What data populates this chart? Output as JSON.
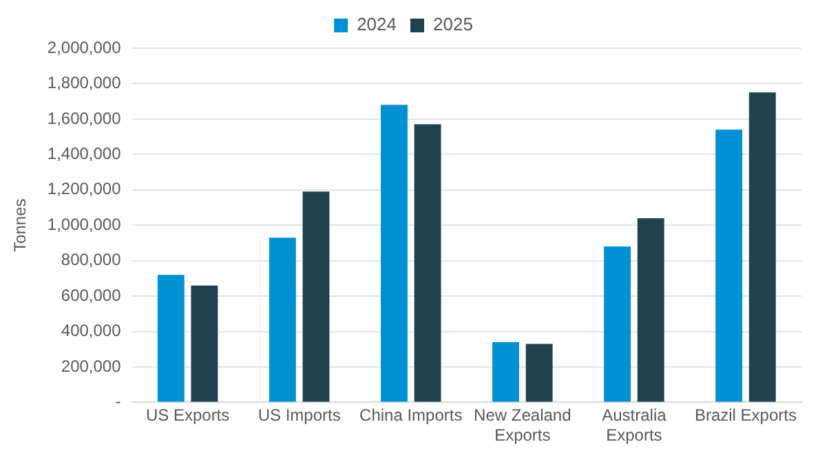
{
  "chart_data": {
    "type": "bar",
    "ylabel": "Tonnes",
    "categories": [
      "US Exports",
      "US Imports",
      "China Imports",
      "New Zealand Exports",
      "Australia Exports",
      "Brazil Exports"
    ],
    "series": [
      {
        "name": "2024",
        "color": "#0090d4",
        "values": [
          720000,
          930000,
          1680000,
          340000,
          880000,
          1540000
        ]
      },
      {
        "name": "2025",
        "color": "#1f4150",
        "values": [
          660000,
          1190000,
          1570000,
          330000,
          1040000,
          1750000
        ]
      }
    ],
    "ylim": [
      0,
      2000000
    ],
    "yticks": [
      {
        "value": 0,
        "label": "-"
      },
      {
        "value": 200000,
        "label": "200,000"
      },
      {
        "value": 400000,
        "label": "400,000"
      },
      {
        "value": 600000,
        "label": "600,000"
      },
      {
        "value": 800000,
        "label": "800,000"
      },
      {
        "value": 1000000,
        "label": "1,000,000"
      },
      {
        "value": 1200000,
        "label": "1,200,000"
      },
      {
        "value": 1400000,
        "label": "1,400,000"
      },
      {
        "value": 1600000,
        "label": "1,600,000"
      },
      {
        "value": 1800000,
        "label": "1,800,000"
      },
      {
        "value": 2000000,
        "label": "2,000,000"
      }
    ],
    "grid": "y",
    "legend": "top"
  }
}
